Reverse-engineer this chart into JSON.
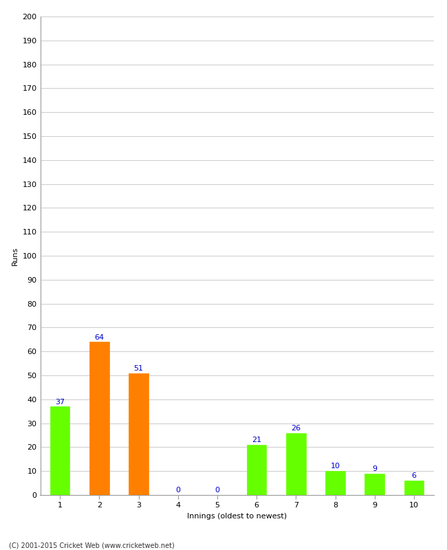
{
  "xlabel": "Innings (oldest to newest)",
  "ylabel": "Runs",
  "categories": [
    "1",
    "2",
    "3",
    "4",
    "5",
    "6",
    "7",
    "8",
    "9",
    "10"
  ],
  "values": [
    37,
    64,
    51,
    0,
    0,
    21,
    26,
    10,
    9,
    6
  ],
  "colors": [
    "#66ff00",
    "#ff8000",
    "#ff8000",
    "#66ff00",
    "#66ff00",
    "#66ff00",
    "#66ff00",
    "#66ff00",
    "#66ff00",
    "#66ff00"
  ],
  "ylim": [
    0,
    200
  ],
  "yticks": [
    0,
    10,
    20,
    30,
    40,
    50,
    60,
    70,
    80,
    90,
    100,
    110,
    120,
    130,
    140,
    150,
    160,
    170,
    180,
    190,
    200
  ],
  "label_color": "#0000cc",
  "label_fontsize": 8,
  "axis_fontsize": 8,
  "ylabel_fontsize": 8,
  "footer": "(C) 2001-2015 Cricket Web (www.cricketweb.net)",
  "footer_fontsize": 7,
  "background_color": "#ffffff",
  "grid_color": "#cccccc",
  "bar_width": 0.5
}
